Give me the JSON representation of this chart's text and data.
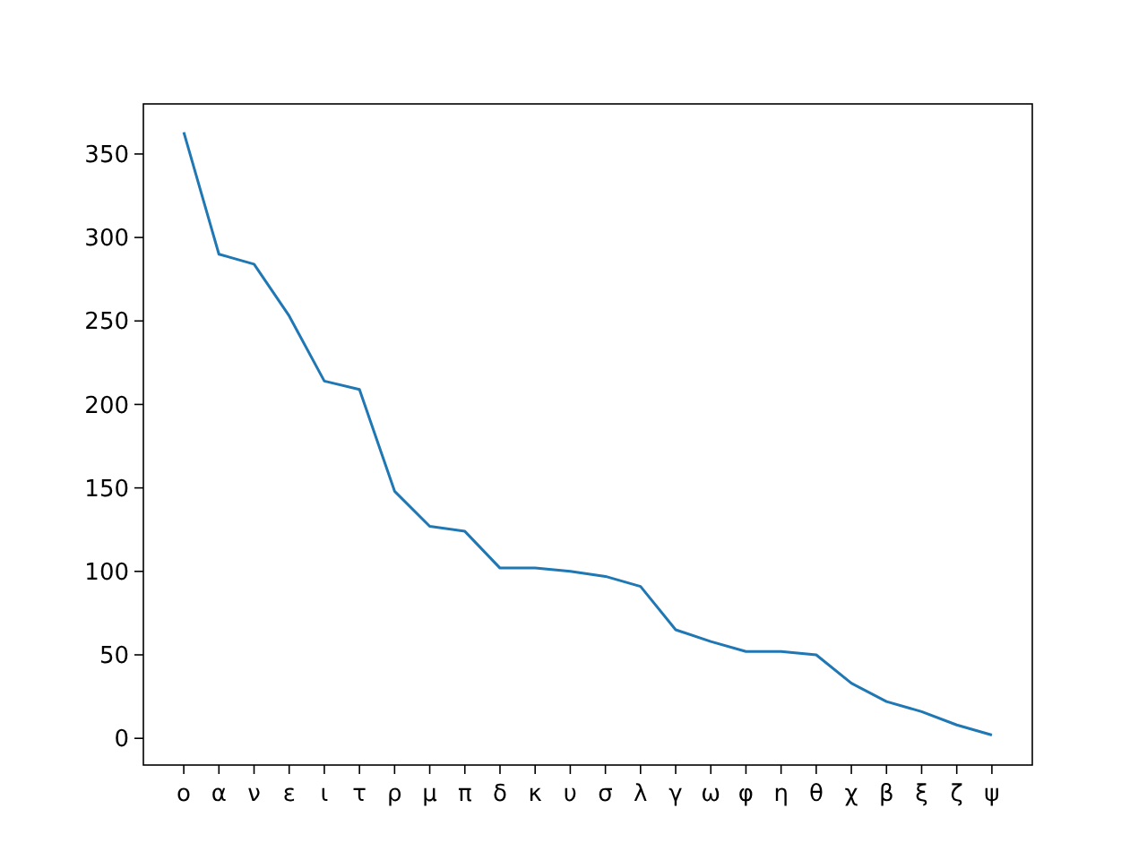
{
  "chart_data": {
    "type": "line",
    "categories": [
      "ο",
      "α",
      "ν",
      "ε",
      "ι",
      "τ",
      "ρ",
      "μ",
      "π",
      "δ",
      "κ",
      "υ",
      "σ",
      "λ",
      "γ",
      "ω",
      "φ",
      "η",
      "θ",
      "χ",
      "β",
      "ξ",
      "ζ",
      "ψ"
    ],
    "series": [
      {
        "color": "#1f77b4",
        "values": [
          363,
          290,
          284,
          253,
          214,
          209,
          148,
          127,
          124,
          102,
          102,
          100,
          97,
          91,
          65,
          58,
          52,
          52,
          50,
          33,
          22,
          16,
          8,
          2
        ]
      }
    ],
    "ylim": [
      -16,
      380
    ],
    "yticks": [
      0,
      50,
      100,
      150,
      200,
      250,
      300,
      350
    ],
    "grid": false,
    "marker": "none"
  }
}
